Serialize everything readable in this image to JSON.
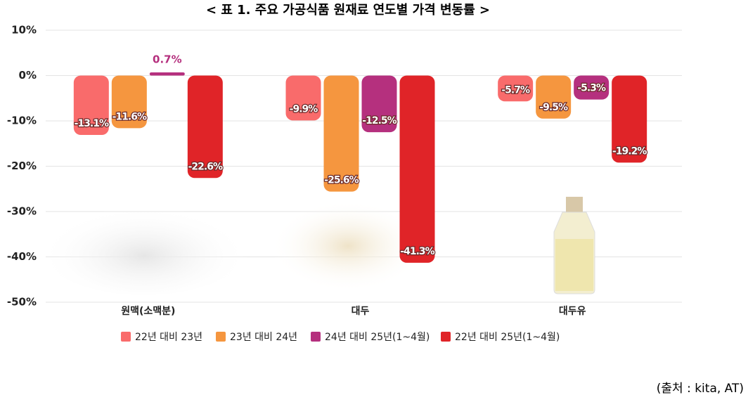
{
  "chart_data": {
    "type": "bar",
    "title": "< 표 1. 주요 가공식품 원재료 연도별 가격 변동률 >",
    "source": "(출처 : kita, AT)",
    "categories": [
      "원맥(소맥분)",
      "대두",
      "대두유"
    ],
    "series": [
      {
        "name": "22년 대비 23년",
        "color": "#f96b6b",
        "values": [
          -13.1,
          -9.9,
          -5.7
        ],
        "value_labels": [
          "-13.1%",
          "-9.9%",
          "-5.7%"
        ]
      },
      {
        "name": "23년 대비 24년",
        "color": "#f5963f",
        "values": [
          -11.6,
          -25.6,
          -9.5
        ],
        "value_labels": [
          "-11.6%",
          "-25.6%",
          "-9.5%"
        ]
      },
      {
        "name": "24년 대비 25년(1~4월)",
        "color": "#b5307e",
        "values": [
          0.7,
          -12.5,
          -5.3
        ],
        "value_labels": [
          "0.7%",
          "-12.5%",
          "-5.3%"
        ]
      },
      {
        "name": "22년 대비 25년(1~4월)",
        "color": "#e02428",
        "values": [
          -22.6,
          -41.3,
          -19.2
        ],
        "value_labels": [
          "-22.6%",
          "-41.3%",
          "-19.2%"
        ]
      }
    ],
    "ylim": [
      -50,
      10
    ],
    "yticks": [
      {
        "value": 10,
        "label": "10%"
      },
      {
        "value": 0,
        "label": "0%"
      },
      {
        "value": -10,
        "label": "-10%"
      },
      {
        "value": -20,
        "label": "-20%"
      },
      {
        "value": -30,
        "label": "-30%"
      },
      {
        "value": -40,
        "label": "-40%"
      },
      {
        "value": -50,
        "label": "-50%"
      }
    ],
    "grid": true
  }
}
